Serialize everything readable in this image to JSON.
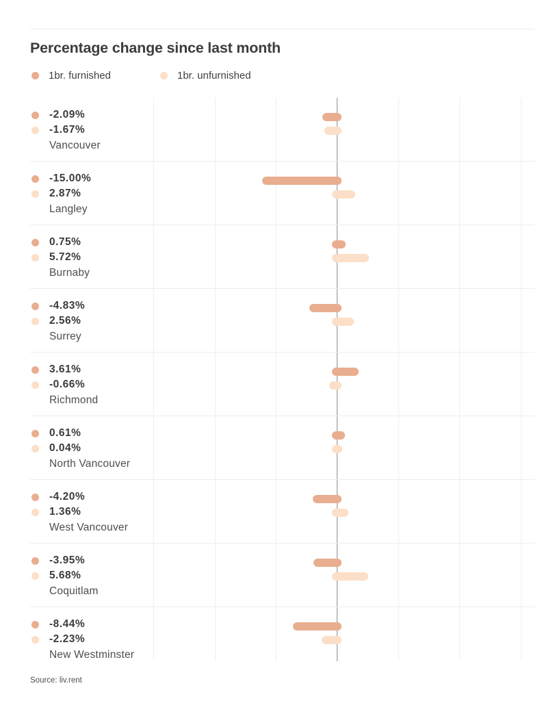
{
  "title": "Percentage change since last month",
  "legend": [
    {
      "label": "1br. furnished"
    },
    {
      "label": "1br. unfurnished"
    }
  ],
  "source": "Source: liv.rent",
  "colors": {
    "furnished": "#e9ad8f",
    "unfurnished": "#fcdfc8",
    "zero_line": "#8c8c8c",
    "gridline": "#f1efee",
    "separator": "#f3ebea"
  },
  "chart_data": {
    "type": "bar",
    "orientation": "horizontal",
    "axis": "percent change since last month",
    "grid": true,
    "zero_axis": true,
    "categories": [
      "Vancouver",
      "Langley",
      "Burnaby",
      "Surrey",
      "Richmond",
      "North Vancouver",
      "West Vancouver",
      "Coquitlam",
      "New Westminster"
    ],
    "series": [
      {
        "name": "1br. furnished",
        "values": [
          -2.09,
          -15.0,
          0.75,
          -4.83,
          3.61,
          0.61,
          -4.2,
          -3.95,
          -8.44
        ]
      },
      {
        "name": "1br. unfurnished",
        "values": [
          -1.67,
          2.87,
          5.72,
          2.56,
          -0.66,
          0.04,
          1.36,
          5.68,
          -2.23
        ]
      }
    ],
    "value_labels": [
      [
        "-2.09%",
        "-1.67%"
      ],
      [
        "-15.00%",
        "2.87%"
      ],
      [
        "0.75%",
        "5.72%"
      ],
      [
        "-4.83%",
        "2.56%"
      ],
      [
        "3.61%",
        "-0.66%"
      ],
      [
        "0.61%",
        "0.04%"
      ],
      [
        "-4.20%",
        "1.36%"
      ],
      [
        "-3.95%",
        "5.68%"
      ],
      [
        "-8.44%",
        "-2.23%"
      ]
    ],
    "xlim_approx_pct": [
      -39,
      46
    ]
  }
}
